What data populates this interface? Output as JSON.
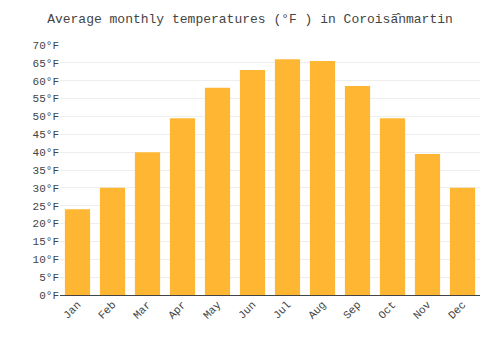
{
  "chart_data": {
    "type": "bar",
    "title": "Average monthly temperatures (°F ) in Coroisã̂nmartin",
    "categories": [
      "Jan",
      "Feb",
      "Mar",
      "Apr",
      "May",
      "Jun",
      "Jul",
      "Aug",
      "Sep",
      "Oct",
      "Nov",
      "Dec"
    ],
    "values": [
      24,
      30,
      40,
      49.5,
      58,
      63,
      66,
      65.5,
      58.5,
      49.5,
      39.5,
      30
    ],
    "color": "#FFB733",
    "ylim": [
      0,
      70
    ],
    "yticks": [
      {
        "value": 0,
        "label": "0°F"
      },
      {
        "value": 5,
        "label": "5°F"
      },
      {
        "value": 10,
        "label": "10°F"
      },
      {
        "value": 15,
        "label": "15°F"
      },
      {
        "value": 20,
        "label": "20°F"
      },
      {
        "value": 25,
        "label": "25°F"
      },
      {
        "value": 30,
        "label": "30°F"
      },
      {
        "value": 35,
        "label": "35°F"
      },
      {
        "value": 40,
        "label": "40°F"
      },
      {
        "value": 45,
        "label": "45°F"
      },
      {
        "value": 50,
        "label": "50°F"
      },
      {
        "value": 55,
        "label": "55°F"
      },
      {
        "value": 60,
        "label": "60°F"
      },
      {
        "value": 65,
        "label": "65°F"
      },
      {
        "value": 70,
        "label": "70°F"
      }
    ],
    "grid": true
  }
}
